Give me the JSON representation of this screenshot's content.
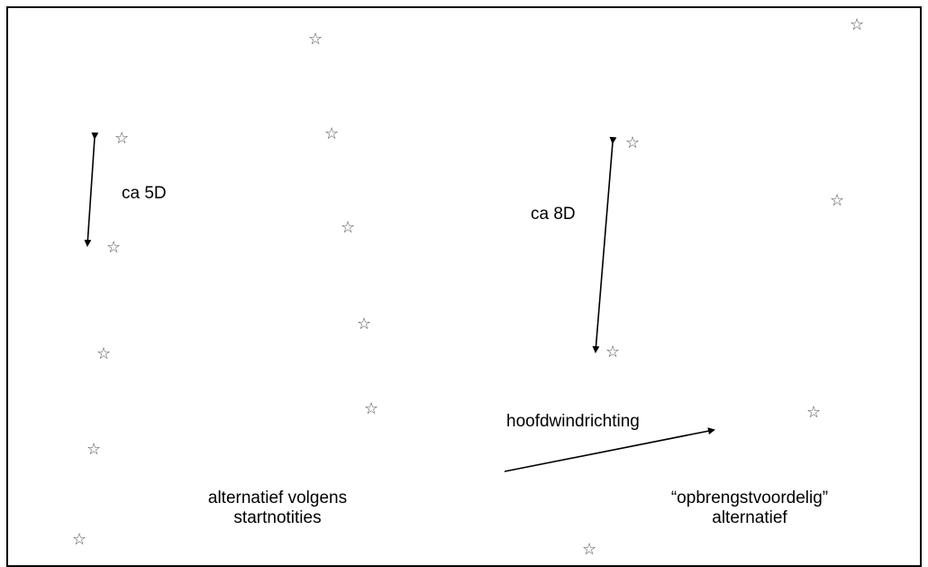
{
  "labels": {
    "left_spacing": "ca 5D",
    "right_spacing": "ca 8D",
    "wind_direction": "hoofdwindrichting",
    "left_alternative_line1": "alternatief volgens",
    "left_alternative_line2": "startnotities",
    "right_alternative_line1": "“opbrengstvoordelig”",
    "right_alternative_line2": "alternatief"
  },
  "icons": {
    "turbine_marker": "star-outline-icon",
    "turbine_glyph": "☆"
  },
  "colors": {
    "line": "#000000",
    "marker": "#555555",
    "background": "#ffffff"
  }
}
